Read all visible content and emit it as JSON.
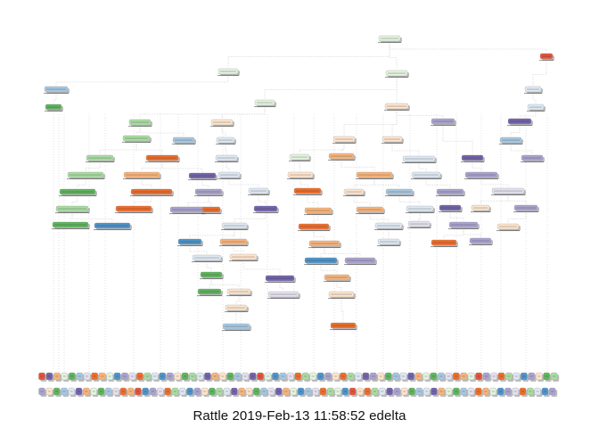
{
  "caption": "Rattle 2019-Feb-13 11:58:52 edelta",
  "palette": {
    "green": [
      "#e3f3df",
      "#a8dca2",
      "#5eb45d"
    ],
    "blue": [
      "#dde8f3",
      "#a5c7e2",
      "#4d93c9"
    ],
    "orange": [
      "#fde4cc",
      "#f7b37a",
      "#ec6d2b"
    ],
    "purple": [
      "#e4e0ef",
      "#a8a2cf",
      "#7263ab"
    ],
    "red": "#e2533b",
    "shadow": "#bdbdbd",
    "edge": "#d6d6d6",
    "node_border": "#9a9a9a",
    "text": "#222222"
  }
}
